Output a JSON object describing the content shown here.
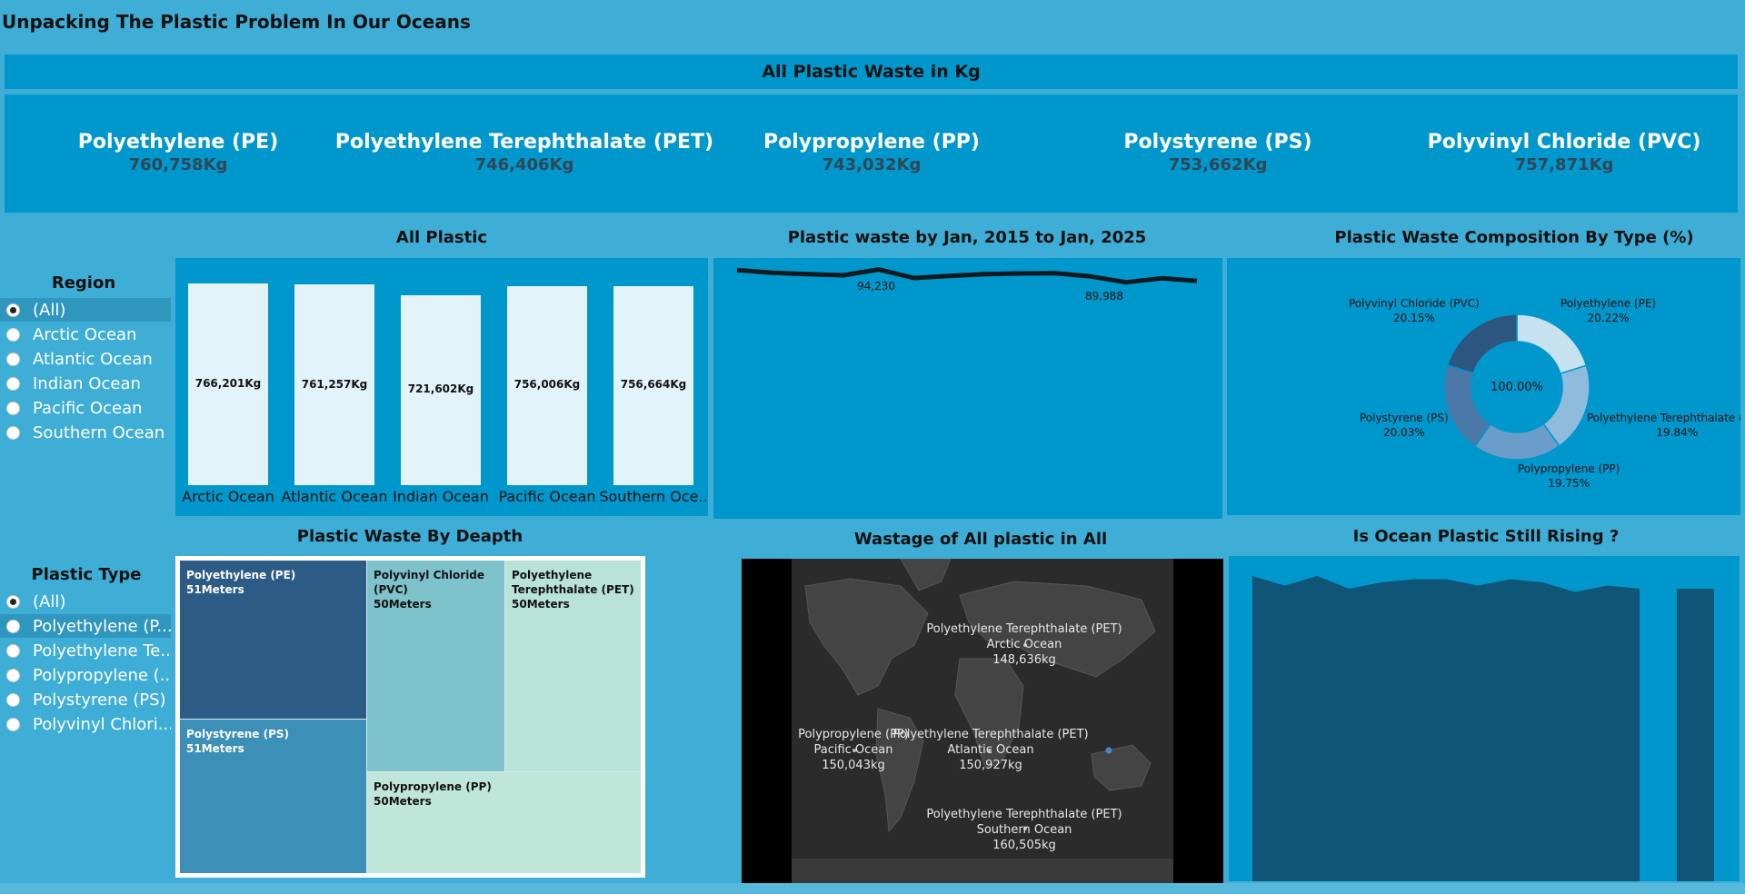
{
  "title": "Unpacking The Plastic Problem In Our Oceans",
  "kpi": {
    "header": "All Plastic Waste in Kg",
    "items": [
      {
        "name": "Polyethylene (PE)",
        "value": "760,758Kg"
      },
      {
        "name": "Polyethylene Terephthalate (PET)",
        "value": "746,406Kg"
      },
      {
        "name": "Polypropylene (PP)",
        "value": "743,032Kg"
      },
      {
        "name": "Polystyrene (PS)",
        "value": "753,662Kg"
      },
      {
        "name": "Polyvinyl Chloride (PVC)",
        "value": "757,871Kg"
      }
    ]
  },
  "region_filter": {
    "title": "Region",
    "options": [
      "(All)",
      "Arctic Ocean",
      "Atlantic Ocean",
      "Indian Ocean",
      "Pacific Ocean",
      "Southern Ocean"
    ],
    "selected": "(All)"
  },
  "type_filter": {
    "title": "Plastic Type",
    "options": [
      "(All)",
      "Polyethylene (P...",
      "Polyethylene Te...",
      "Polypropylene (...",
      "Polystyrene (PS)",
      "Polyvinyl Chlori..."
    ],
    "selected": "(All)"
  },
  "bar_chart": {
    "title": "All  Plastic",
    "categories": [
      "Arctic Ocean",
      "Atlantic Ocean",
      "Indian Ocean",
      "Pacific Ocean",
      "Southern Oce.."
    ],
    "labels": [
      "766,201Kg",
      "761,257Kg",
      "721,602Kg",
      "756,006Kg",
      "756,664Kg"
    ]
  },
  "line_chart": {
    "title": "Plastic waste by  Jan, 2015 to Jan, 2025",
    "label_high": "94,230",
    "label_low": "89,988"
  },
  "donut": {
    "title": "Plastic Waste Composition By Type (%)",
    "center": "100.00%",
    "labels": [
      {
        "name": "Polyethylene (PE)",
        "pct": "20.22%"
      },
      {
        "name": "Polyethylene Terephthalate (PET)",
        "pct": "19.84%"
      },
      {
        "name": "Polypropylene (PP)",
        "pct": "19.75%"
      },
      {
        "name": "Polystyrene (PS)",
        "pct": "20.03%"
      },
      {
        "name": "Polyvinyl Chloride (PVC)",
        "pct": "20.15%"
      }
    ]
  },
  "treemap": {
    "title": "Plastic Waste By Deapth",
    "cells": [
      {
        "name": "Polyethylene (PE)",
        "depth": "51Meters"
      },
      {
        "name": "Polystyrene (PS)",
        "depth": "51Meters"
      },
      {
        "name": "Polyvinyl Chloride (PVC)",
        "depth": "50Meters"
      },
      {
        "name": "Polyethylene Terephthalate (PET)",
        "depth": "50Meters"
      },
      {
        "name": "Polypropylene (PP)",
        "depth": "50Meters"
      }
    ]
  },
  "map": {
    "title": "Wastage of All plastic in  All",
    "labels": [
      {
        "type": "Polyethylene Terephthalate (PET)",
        "ocean": "Arctic Ocean",
        "value": "148,636kg"
      },
      {
        "type": "Polypropylene (PP)",
        "ocean": "Pacific Ocean",
        "value": "150,043kg"
      },
      {
        "type": "Polyethylene Terephthalate (PET)",
        "ocean": "Atlantic Ocean",
        "value": "150,927kg"
      },
      {
        "type": "Polyethylene Terephthalate (PET)",
        "ocean": "Southern Ocean",
        "value": "160,505kg"
      }
    ]
  },
  "area_chart": {
    "title": "Is Ocean Plastic Still Rising ?"
  },
  "colors": {
    "background": "#3eaed6",
    "panel": "#0097cc",
    "bar": "#e2f3fa",
    "area": "#0e5578"
  },
  "chart_data": [
    {
      "type": "bar",
      "title": "All  Plastic",
      "categories": [
        "Arctic Ocean",
        "Atlantic Ocean",
        "Indian Ocean",
        "Pacific Ocean",
        "Southern Oce.."
      ],
      "values": [
        766201,
        761257,
        721602,
        756006,
        756664
      ]
    },
    {
      "type": "line",
      "title": "Plastic waste by  Jan, 2015 to Jan, 2025",
      "values": [
        94000,
        93100,
        92700,
        92300,
        94230,
        91400,
        92100,
        92700,
        92900,
        93000,
        91900,
        89988,
        91300,
        90400
      ]
    },
    {
      "type": "pie",
      "title": "Plastic Waste Composition By Type (%)",
      "categories": [
        "Polyethylene (PE)",
        "Polyethylene Terephthalate (PET)",
        "Polypropylene (PP)",
        "Polystyrene (PS)",
        "Polyvinyl Chloride (PVC)"
      ],
      "values": [
        20.22,
        19.84,
        19.75,
        20.03,
        20.15
      ]
    },
    {
      "type": "area",
      "title": "Is Ocean Plastic Still Rising ?",
      "values": [
        96,
        93,
        96,
        92,
        94,
        95,
        95,
        93,
        95,
        94,
        91,
        93,
        92
      ]
    }
  ]
}
